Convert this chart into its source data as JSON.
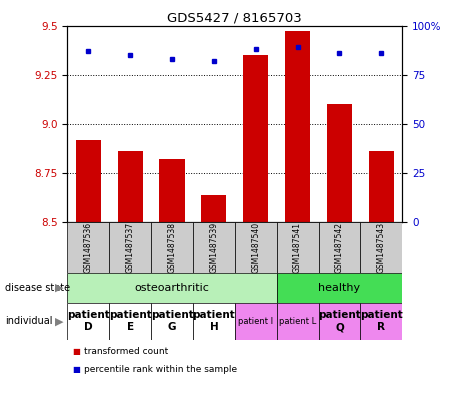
{
  "title": "GDS5427 / 8165703",
  "samples": [
    "GSM1487536",
    "GSM1487537",
    "GSM1487538",
    "GSM1487539",
    "GSM1487540",
    "GSM1487541",
    "GSM1487542",
    "GSM1487543"
  ],
  "red_values": [
    8.92,
    8.86,
    8.82,
    8.64,
    9.35,
    9.47,
    9.1,
    8.86
  ],
  "blue_values": [
    87,
    85,
    83,
    82,
    88,
    89,
    86,
    86
  ],
  "ylim_left": [
    8.5,
    9.5
  ],
  "ylim_right": [
    0,
    100
  ],
  "yticks_left": [
    8.5,
    8.75,
    9.0,
    9.25,
    9.5
  ],
  "yticks_right": [
    0,
    25,
    50,
    75,
    100
  ],
  "bar_color": "#cc0000",
  "dot_color": "#0000cc",
  "bar_width": 0.6,
  "sample_bg_color": "#cccccc",
  "disease_oa_color": "#b8f0b8",
  "disease_healthy_color": "#44dd55",
  "indiv_white_color": "#ffffff",
  "indiv_pink_color": "#ee88ee",
  "individual_labels": [
    "patient\nD",
    "patient\nE",
    "patient\nG",
    "patient\nH",
    "patient I",
    "patient L",
    "patient\nQ",
    "patient\nR"
  ],
  "individual_font_sizes": [
    7.5,
    7.5,
    7.5,
    7.5,
    6,
    6,
    7.5,
    7.5
  ],
  "individual_bold": [
    true,
    true,
    true,
    true,
    false,
    false,
    true,
    true
  ],
  "legend_red_label": "transformed count",
  "legend_blue_label": "percentile rank within the sample",
  "left_axis_color": "#cc0000",
  "right_axis_color": "#0000cc",
  "grid_ticks": [
    8.75,
    9.0,
    9.25
  ]
}
